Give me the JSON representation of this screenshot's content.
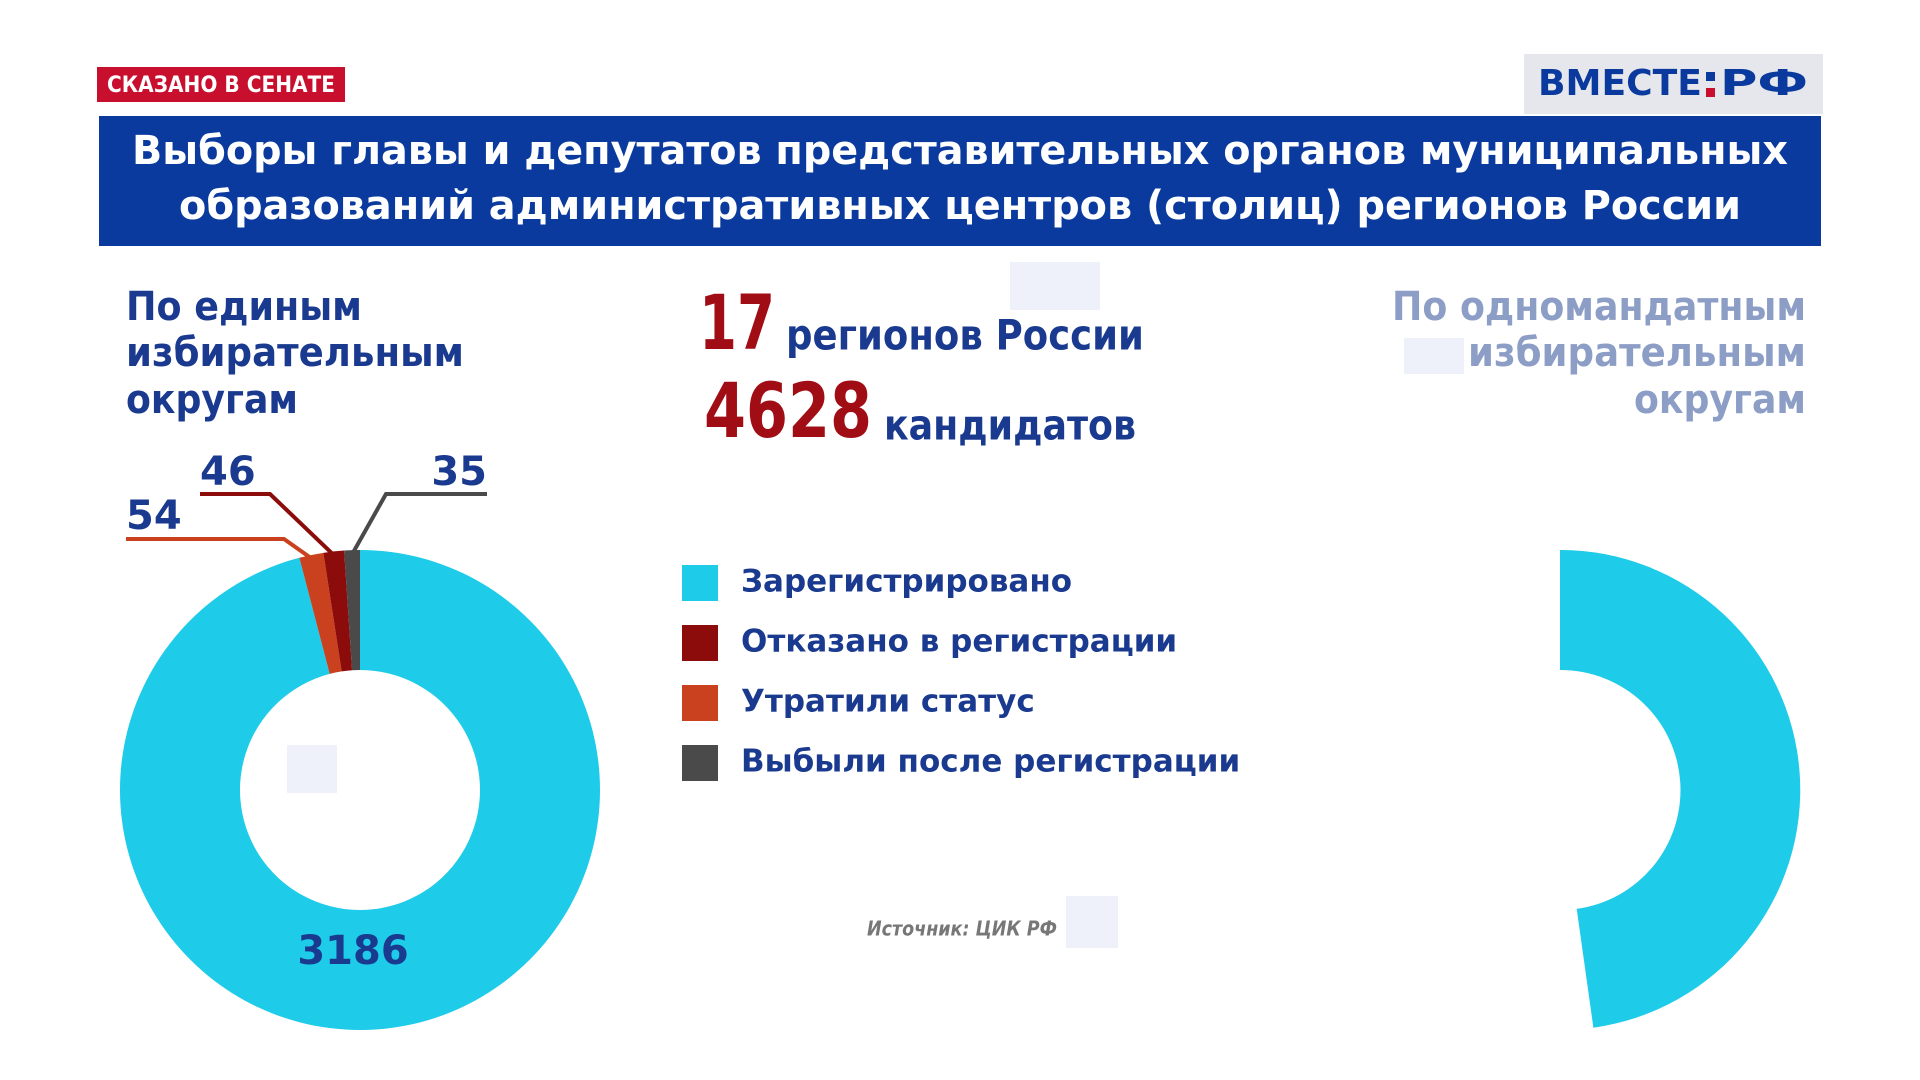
{
  "tag": "СКАЗАНО В СЕНАТЕ",
  "logo": {
    "left": "ВМЕСТЕ",
    "right": "РФ"
  },
  "title": [
    "Выборы главы и депутатов представительных органов муниципальных",
    "образований административных центров (столиц) регионов России"
  ],
  "left_heading": [
    "По единым",
    "избирательным",
    "округам"
  ],
  "right_heading": [
    "По одномандатным",
    "избирательным",
    "округам"
  ],
  "stats": [
    {
      "value": 17,
      "label": "регионов России"
    },
    {
      "value": 4628,
      "label": "кандидатов"
    }
  ],
  "source": "Источник: ЦИК РФ",
  "chart_data": {
    "type": "pie",
    "categories": [
      "Зарегистрировано",
      "Отказано в регистрации",
      "Утратили статус",
      "Выбыли после регистрации"
    ],
    "values": [
      3186,
      46,
      54,
      35
    ],
    "colors": [
      "#1ecbe9",
      "#8c0b0b",
      "#c9411e",
      "#4a4a4a"
    ]
  }
}
